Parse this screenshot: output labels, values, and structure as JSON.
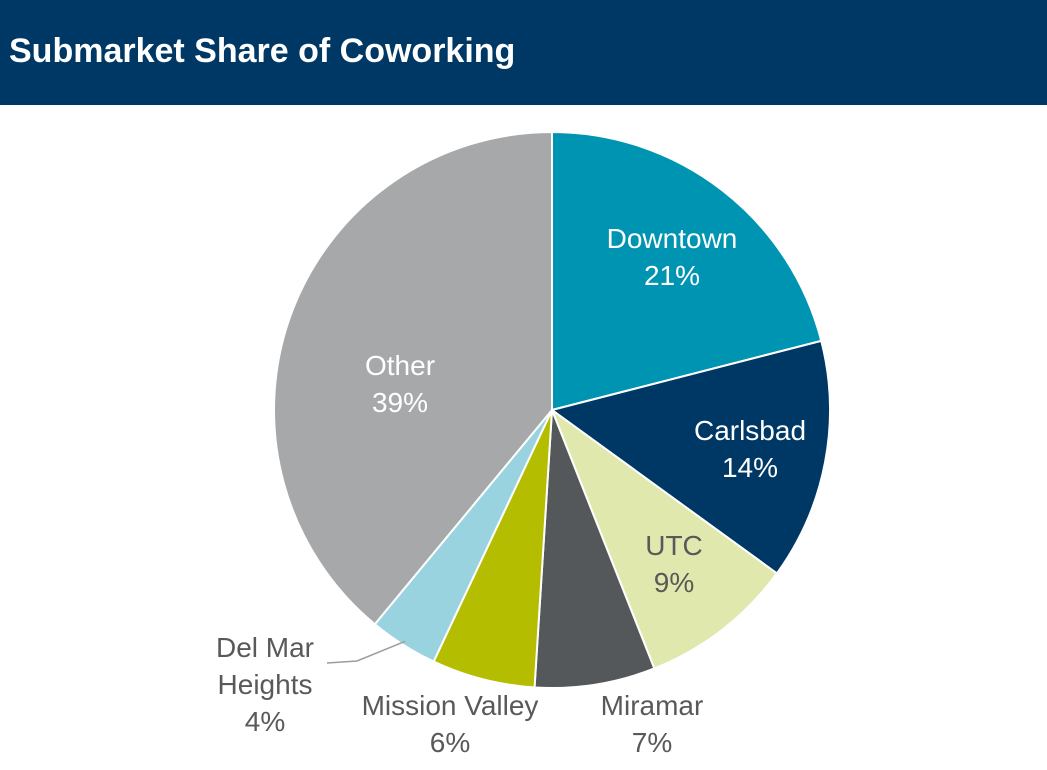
{
  "header": {
    "title": "Submarket Share of Coworking"
  },
  "colors": {
    "header_bg": "#003865",
    "title_text": "#ffffff",
    "slice_border": "#ffffff",
    "leader_line": "#9c9c9c"
  },
  "chart_data": {
    "type": "pie",
    "title": "Submarket Share of Coworking",
    "start": "12 o'clock",
    "direction": "clockwise",
    "slices": [
      {
        "label": "Downtown",
        "value": 21,
        "value_label": "21%",
        "color": "#0094b3",
        "label_color": "#ffffff",
        "label_position": "inside"
      },
      {
        "label": "Carlsbad",
        "value": 14,
        "value_label": "14%",
        "color": "#003865",
        "label_color": "#ffffff",
        "label_position": "inside"
      },
      {
        "label": "UTC",
        "value": 9,
        "value_label": "9%",
        "color": "#e1e8ad",
        "label_color": "#595959",
        "label_position": "inside"
      },
      {
        "label": "Miramar",
        "value": 7,
        "value_label": "7%",
        "color": "#54585a",
        "label_color": "#595959",
        "label_position": "outside"
      },
      {
        "label": "Mission Valley",
        "value": 6,
        "value_label": "6%",
        "color": "#b5bd00",
        "label_color": "#595959",
        "label_position": "outside"
      },
      {
        "label": "Del Mar Heights",
        "value": 4,
        "value_label": "4%",
        "color": "#99d3df",
        "label_color": "#595959",
        "label_position": "outside-leader"
      },
      {
        "label": "Other",
        "value": 39,
        "value_label": "39%",
        "color": "#a7a8aa",
        "label_color": "#ffffff",
        "label_position": "inside"
      }
    ]
  }
}
